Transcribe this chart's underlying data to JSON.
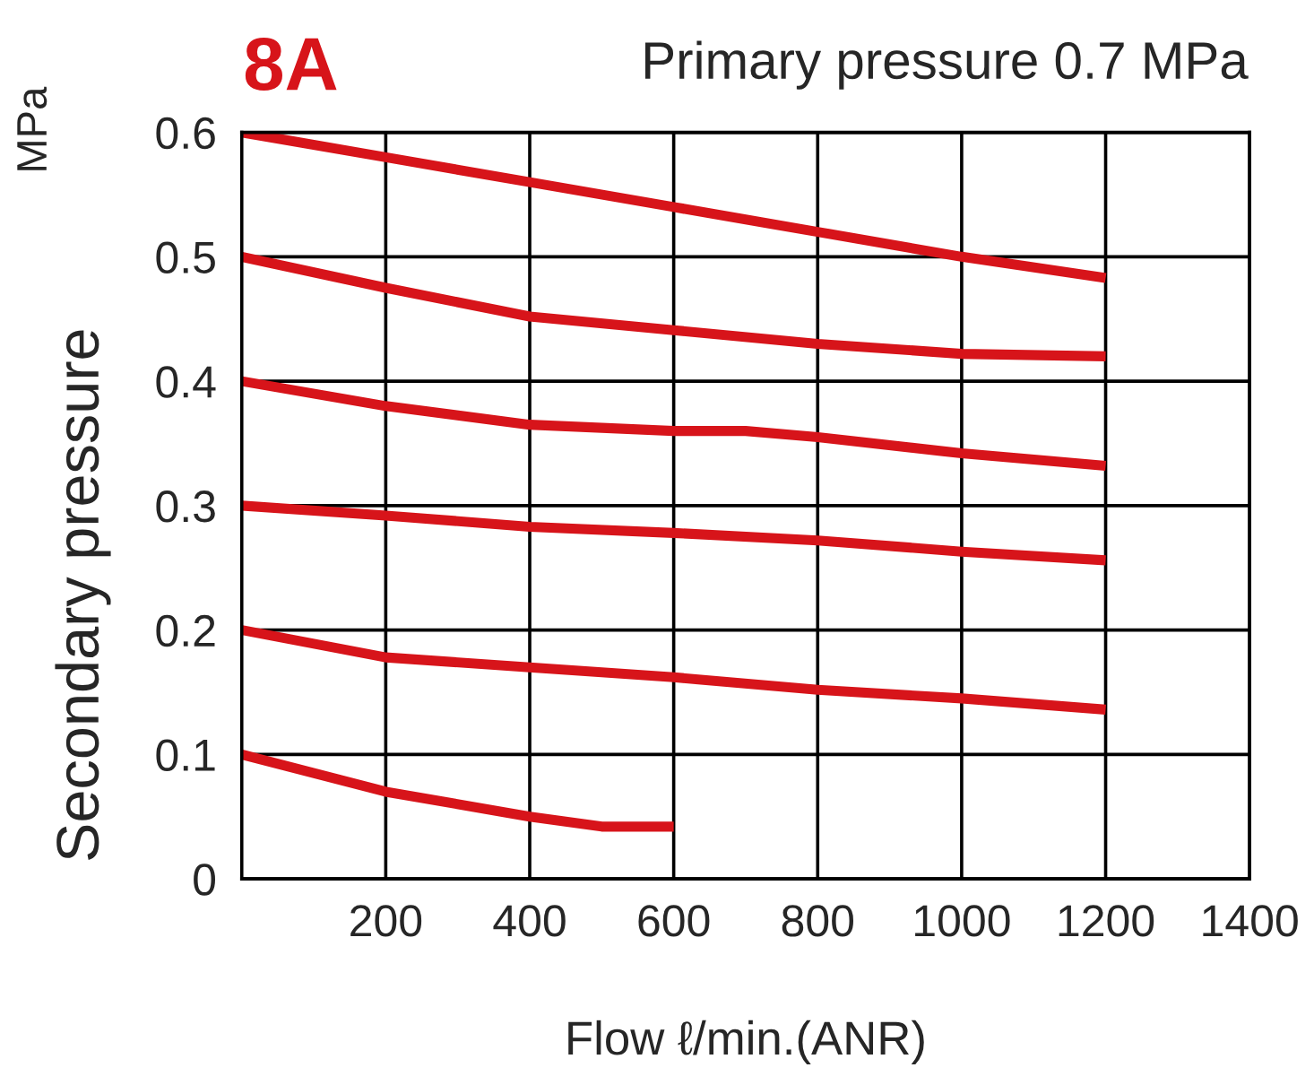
{
  "chart_data": {
    "type": "line",
    "title": "8A",
    "subtitle": "Primary pressure 0.7 MPa",
    "xlabel": "Flow ℓ/min.(ANR)",
    "ylabel": "Secondary pressure",
    "annotations": [
      "MPa"
    ],
    "xlim": [
      0,
      1400
    ],
    "xticks": [
      200,
      400,
      600,
      800,
      1000,
      1200,
      1400
    ],
    "ylim": [
      0,
      0.6
    ],
    "yticks": [
      0,
      0.1,
      0.2,
      0.3,
      0.4,
      0.5,
      0.6
    ],
    "grid": true,
    "marker": "none",
    "line_style": "solid",
    "series": [
      {
        "color": "#d7141a",
        "x": [
          0,
          200,
          400,
          600,
          800,
          1000,
          1200
        ],
        "values": [
          0.6,
          0.58,
          0.56,
          0.54,
          0.52,
          0.5,
          0.483
        ]
      },
      {
        "color": "#d7141a",
        "x": [
          0,
          200,
          400,
          600,
          800,
          1000,
          1200
        ],
        "values": [
          0.5,
          0.475,
          0.452,
          0.441,
          0.43,
          0.422,
          0.42
        ]
      },
      {
        "color": "#d7141a",
        "x": [
          0,
          200,
          400,
          600,
          700,
          800,
          1000,
          1200
        ],
        "values": [
          0.4,
          0.38,
          0.365,
          0.36,
          0.36,
          0.355,
          0.342,
          0.332
        ]
      },
      {
        "color": "#d7141a",
        "x": [
          0,
          200,
          400,
          600,
          800,
          1000,
          1200
        ],
        "values": [
          0.3,
          0.292,
          0.283,
          0.278,
          0.272,
          0.263,
          0.256
        ]
      },
      {
        "color": "#d7141a",
        "x": [
          0,
          200,
          400,
          600,
          800,
          1000,
          1200
        ],
        "values": [
          0.2,
          0.178,
          0.17,
          0.162,
          0.152,
          0.145,
          0.136
        ]
      },
      {
        "color": "#d7141a",
        "x": [
          0,
          200,
          400,
          500,
          600
        ],
        "values": [
          0.1,
          0.07,
          0.05,
          0.042,
          0.042
        ]
      }
    ]
  }
}
